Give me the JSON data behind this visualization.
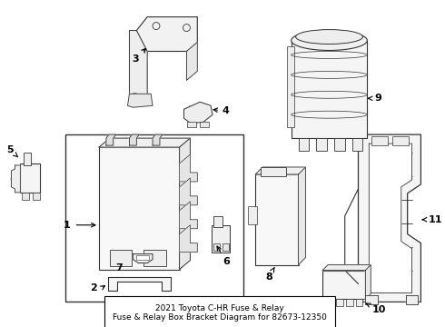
{
  "background_color": "#ffffff",
  "line_color": "#333333",
  "title": "2021 Toyota C-HR Fuse & Relay\nFuse & Relay Box Bracket Diagram for 82673-12350",
  "title_fontsize": 6.5,
  "figsize": [
    4.9,
    3.6
  ],
  "dpi": 100
}
